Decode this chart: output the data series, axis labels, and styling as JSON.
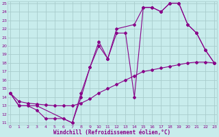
{
  "xlabel": "Windchill (Refroidissement éolien,°C)",
  "bg_color": "#c8ecec",
  "grid_color": "#a8cccc",
  "line_color": "#880088",
  "xlim": [
    0,
    23
  ],
  "ylim": [
    11,
    25
  ],
  "xticks": [
    0,
    1,
    2,
    3,
    4,
    5,
    6,
    7,
    8,
    9,
    10,
    11,
    12,
    13,
    14,
    15,
    16,
    17,
    18,
    19,
    20,
    21,
    22,
    23
  ],
  "yticks": [
    11,
    12,
    13,
    14,
    15,
    16,
    17,
    18,
    19,
    20,
    21,
    22,
    23,
    24,
    25
  ],
  "line1_x": [
    0,
    1,
    2,
    3,
    4,
    5,
    6,
    7,
    8,
    9,
    10,
    11,
    12,
    13,
    14,
    15,
    16,
    17,
    18,
    19,
    20,
    21,
    22,
    23
  ],
  "line1_y": [
    14.5,
    13.0,
    13.0,
    12.5,
    11.5,
    11.5,
    11.5,
    11.0,
    14.0,
    17.5,
    20.0,
    18.5,
    21.5,
    21.5,
    14.0,
    24.5,
    24.5,
    24.0,
    25.0,
    25.0,
    22.5,
    21.5,
    19.5,
    18.0
  ],
  "line2_x": [
    0,
    1,
    3,
    7,
    8,
    9,
    10,
    11,
    12,
    14,
    15,
    16,
    17,
    18,
    19,
    20,
    21,
    22,
    23
  ],
  "line2_y": [
    14.5,
    13.0,
    13.0,
    11.0,
    14.5,
    17.5,
    20.5,
    18.5,
    22.0,
    22.5,
    24.5,
    24.5,
    24.0,
    25.0,
    25.0,
    22.5,
    21.5,
    19.5,
    18.0
  ],
  "line3_x": [
    0,
    1,
    2,
    3,
    4,
    5,
    6,
    7,
    8,
    9,
    10,
    11,
    12,
    13,
    14,
    15,
    16,
    17,
    18,
    19,
    20,
    21,
    22,
    23
  ],
  "line3_y": [
    14.5,
    13.5,
    13.3,
    13.2,
    13.1,
    13.0,
    13.0,
    13.0,
    13.3,
    13.8,
    14.5,
    15.0,
    15.5,
    16.0,
    16.5,
    17.0,
    17.2,
    17.4,
    17.6,
    17.8,
    18.0,
    18.1,
    18.1,
    18.0
  ],
  "marker": "D",
  "markersize": 2.0,
  "linewidth": 0.8,
  "tick_fontsize": 4.5,
  "xlabel_fontsize": 5.5
}
